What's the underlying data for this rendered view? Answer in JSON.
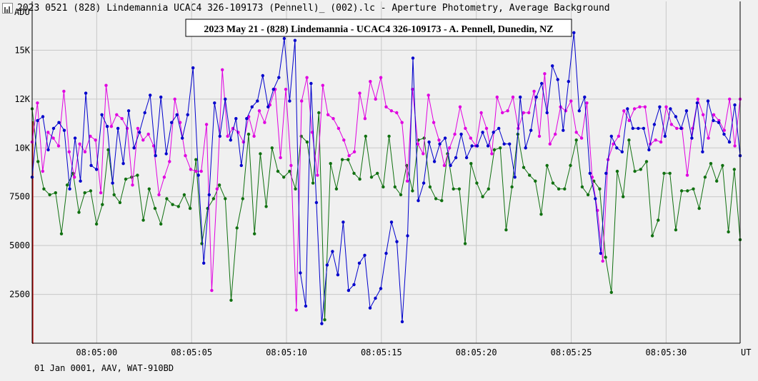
{
  "window": {
    "title": "2023 0521 (828) Lindemannia  UCAC4 326-109173 (Pennell)_ (002).lc - Aperture Photometry, Average Background"
  },
  "footer": {
    "text": "01 Jan 0001, AAV, WAT-910BD"
  },
  "colors": {
    "background": "#f0f0f0",
    "grid": "#c8c8c8",
    "marker_line": "#cc0000",
    "series_blue": "#0000cc",
    "series_magenta": "#e000e0",
    "series_green": "#107010"
  },
  "chart_data": {
    "type": "line",
    "title": "2023 May 21 - (828) Lindemannia - UCAC4 326-109173 - A. Pennell, Dunedin, NZ",
    "ylabel": "ADU",
    "xlabel": "UT",
    "ylim": [
      0,
      17500
    ],
    "yticks": [
      2500,
      5000,
      7500,
      10000,
      12500,
      15000
    ],
    "ytick_labels": [
      "2500",
      "5000",
      "7500",
      "10K",
      "12K",
      "15K"
    ],
    "xlim": [
      "08:04:56.6",
      "08:05:33.9"
    ],
    "xticks": [
      "08:05:00",
      "08:05:05",
      "08:05:10",
      "08:05:15",
      "08:05:20",
      "08:05:25",
      "08:05:30"
    ],
    "grid": true,
    "series": [
      {
        "color": "blue",
        "values": [
          8500,
          11400,
          11600,
          9900,
          11000,
          11300,
          10900,
          7900,
          10500,
          8300,
          12800,
          9100,
          8900,
          11700,
          11100,
          8200,
          11000,
          9200,
          11900,
          10000,
          10800,
          11800,
          12700,
          9600,
          12600,
          9700,
          11300,
          11700,
          10500,
          11700,
          14100,
          8600,
          4100,
          7600,
          12300,
          10600,
          12500,
          10400,
          11500,
          9100,
          11500,
          12100,
          12400,
          13700,
          12100,
          13000,
          13600,
          15600,
          12400,
          15500,
          3600,
          1900,
          13300,
          7200,
          1000,
          4000,
          4700,
          3500,
          6200,
          2700,
          3000,
          4100,
          4500,
          1800,
          2300,
          2800,
          4600,
          6200,
          5200,
          1100,
          5500,
          14600,
          7300,
          8200,
          10300,
          9300,
          10200,
          10500,
          9100,
          9500,
          10700,
          9500,
          10100,
          10100,
          10800,
          10100,
          10800,
          11000,
          10200,
          10200,
          8500,
          12600,
          10000,
          10900,
          12600,
          13300,
          11800,
          14200,
          13500,
          10900,
          13400,
          15900,
          11900,
          12600,
          8700,
          7400,
          4600,
          8700,
          10600,
          10000,
          9800,
          12000,
          11000,
          11000,
          11000,
          9900,
          11200,
          12100,
          10600,
          12000,
          11600,
          11000,
          11900,
          10500,
          12300,
          9800,
          12400,
          11400,
          11300,
          10700,
          10300,
          12200,
          9600
        ]
      },
      {
        "color": "magenta",
        "values": [
          10300,
          12300,
          8800,
          10800,
          10500,
          10100,
          12900,
          9800,
          8500,
          10200,
          9800,
          10600,
          10400,
          7700,
          13200,
          11100,
          11700,
          11500,
          11000,
          8100,
          11000,
          10400,
          10700,
          10100,
          7600,
          8500,
          9300,
          12500,
          11300,
          9600,
          8900,
          8800,
          8800,
          11200,
          2700,
          7900,
          14000,
          10600,
          11000,
          10800,
          10300,
          11600,
          10600,
          11900,
          11300,
          12200,
          13000,
          9500,
          13000,
          9100,
          1700,
          12400,
          13600,
          10800,
          8600,
          13200,
          11700,
          11500,
          11000,
          10400,
          9600,
          9800,
          12800,
          11500,
          13400,
          12500,
          13600,
          12100,
          11900,
          11800,
          11300,
          8300,
          13000,
          10200,
          9700,
          12700,
          11300,
          10400,
          9100,
          10000,
          10700,
          12100,
          11000,
          10500,
          10100,
          11800,
          11000,
          9700,
          12600,
          11800,
          11900,
          12600,
          11000,
          11800,
          11800,
          12900,
          10600,
          13800,
          10200,
          10700,
          12100,
          11900,
          12400,
          10800,
          10500,
          12300,
          8500,
          6800,
          4200,
          9400,
          10200,
          10600,
          11900,
          11400,
          12000,
          12100,
          12100,
          10200,
          10400,
          10300,
          12100,
          11200,
          11000,
          11000,
          8600,
          11000,
          12500,
          11700,
          10500,
          11700,
          11400,
          10900,
          12500,
          10100,
          12500
        ]
      },
      {
        "color": "green",
        "values": [
          12000,
          9300,
          7900,
          7600,
          7700,
          5600,
          8100,
          8700,
          6700,
          7700,
          7800,
          6100,
          7100,
          9900,
          7600,
          7200,
          8400,
          8500,
          8600,
          6300,
          7900,
          6900,
          6100,
          7400,
          7100,
          7000,
          7600,
          6900,
          9400,
          5100,
          6900,
          7400,
          8100,
          7400,
          2200,
          5900,
          7400,
          10700,
          5600,
          9700,
          7000,
          10000,
          8800,
          8500,
          8800,
          7900,
          10600,
          10300,
          8200,
          11800,
          1200,
          9200,
          7900,
          9400,
          9400,
          8700,
          8400,
          10600,
          8500,
          8700,
          8000,
          10600,
          8000,
          7600,
          9100,
          7800,
          10400,
          10500,
          8000,
          7400,
          7300,
          9700,
          7900,
          7900,
          5100,
          9200,
          8200,
          7500,
          7900,
          9900,
          10000,
          5800,
          8000,
          10700,
          9000,
          8600,
          8300,
          6600,
          9100,
          8200,
          7900,
          7900,
          9100,
          10400,
          8000,
          7600,
          8300,
          7900,
          4400,
          2600,
          8800,
          7500,
          10400,
          8800,
          8900,
          9300,
          5500,
          6300,
          8700,
          8700,
          5800,
          7800,
          7800,
          7900,
          6900,
          8500,
          9200,
          8300,
          9100,
          5700,
          8900,
          5300
        ]
      }
    ]
  }
}
